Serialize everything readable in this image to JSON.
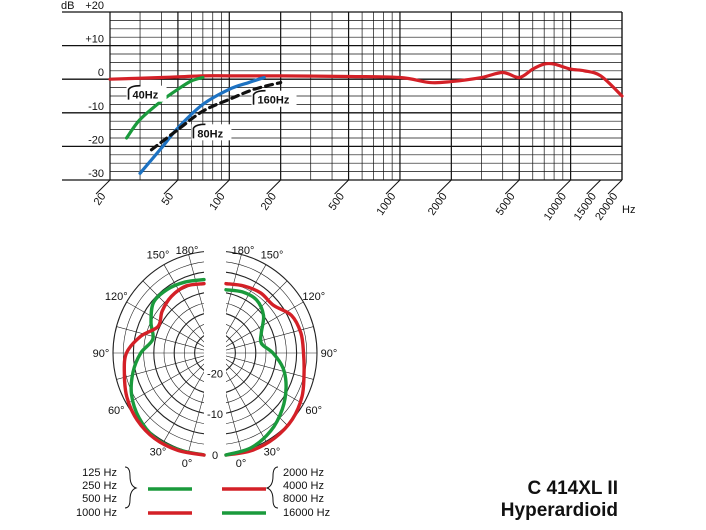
{
  "product": {
    "model": "C 414XL II",
    "pattern": "Hyperardioid"
  },
  "chart_data": [
    {
      "type": "line",
      "ylabel": "dB",
      "xlabel": "Hz",
      "xscale": "log",
      "xlim": [
        20,
        20000
      ],
      "ylim": [
        -30,
        20
      ],
      "x_ticks": [
        "20",
        "50",
        "100",
        "200",
        "500",
        "1000",
        "2000",
        "5000",
        "10000",
        "15000",
        "20000"
      ],
      "y_ticks": [
        "+20",
        "+10",
        "0",
        "-10",
        "-20",
        "-30"
      ],
      "series": [
        {
          "color": "#d42027",
          "x": [
            20,
            40,
            70,
            100,
            200,
            500,
            1000,
            1500,
            2000,
            3000,
            4000,
            5000,
            6000,
            7000,
            8000,
            10000,
            12000,
            15000,
            20000
          ],
          "y": [
            0,
            0.5,
            1,
            1,
            1,
            0.8,
            0.5,
            -1,
            -0.7,
            0.5,
            2,
            0.5,
            3,
            4.5,
            4.5,
            3,
            2.5,
            1,
            -5
          ]
        },
        {
          "color": "#1a9a3c",
          "x": [
            25,
            30,
            40,
            50,
            60,
            70
          ],
          "y": [
            -17.5,
            -12,
            -6.5,
            -3,
            -0.5,
            0.5
          ]
        },
        {
          "color": "#1d72c2",
          "x": [
            30,
            40,
            50,
            70,
            100,
            130,
            160
          ],
          "y": [
            -28,
            -20.5,
            -14.5,
            -7.5,
            -3,
            -1,
            0.5
          ]
        },
        {
          "color": "#111111",
          "dash": true,
          "x": [
            35,
            50,
            70,
            100,
            140,
            200
          ],
          "y": [
            -21,
            -15,
            -9.5,
            -6,
            -3,
            -1
          ]
        }
      ],
      "annotations": [
        "40Hz",
        "80Hz",
        "160Hz"
      ]
    },
    {
      "type": "polar",
      "angle_labels_left": [
        "180°",
        "150°",
        "120°",
        "90°",
        "60°",
        "30°",
        "0°"
      ],
      "angle_labels_right": [
        "180°",
        "150°",
        "120°",
        "90°",
        "60°",
        "30°",
        "0°"
      ],
      "radial_labels": [
        "-20",
        "-10",
        "0"
      ],
      "radial_range_db": [
        -25,
        0
      ],
      "legend": {
        "left": {
          "green": [
            "125 Hz",
            "250 Hz",
            "500 Hz"
          ],
          "red": [
            "1000 Hz"
          ]
        },
        "right": {
          "red": [
            "2000 Hz",
            "4000 Hz",
            "8000 Hz"
          ],
          "green": [
            "16000 Hz"
          ]
        }
      },
      "series": [
        {
          "name": "125 Hz",
          "color": "#1a9a3c",
          "side": "left",
          "angles": [
            0,
            15,
            30,
            45,
            60,
            75,
            90,
            105,
            120,
            135,
            150,
            165,
            180
          ],
          "db": [
            0,
            -0.5,
            -1,
            -2.5,
            -4.5,
            -7,
            -9.5,
            -12,
            -10,
            -7.5,
            -7,
            -7,
            -7
          ]
        },
        {
          "name": "1000 Hz",
          "color": "#d42027",
          "side": "left",
          "angles": [
            0,
            15,
            30,
            45,
            60,
            75,
            90,
            105,
            120,
            135,
            150,
            165,
            180
          ],
          "db": [
            0,
            -0.3,
            -0.8,
            -1.8,
            -3.2,
            -4.8,
            -6,
            -9,
            -12,
            -10.5,
            -9,
            -8,
            -8
          ]
        },
        {
          "name": "2000 Hz",
          "color": "#d42027",
          "side": "right",
          "angles": [
            0,
            15,
            30,
            45,
            60,
            75,
            90,
            105,
            120,
            135,
            150,
            165,
            180
          ],
          "db": [
            0,
            -0.3,
            -1,
            -2,
            -3.5,
            -5.2,
            -6,
            -6,
            -6.5,
            -8.5,
            -8,
            -8,
            -8
          ]
        },
        {
          "name": "16000 Hz",
          "color": "#1a9a3c",
          "side": "right",
          "angles": [
            0,
            15,
            30,
            45,
            60,
            75,
            90,
            105,
            120,
            135,
            150,
            165,
            180
          ],
          "db": [
            0,
            -1,
            -3,
            -5.5,
            -8,
            -10.5,
            -13.5,
            -16,
            -15,
            -12,
            -10,
            -9.5,
            -9.5
          ]
        }
      ]
    }
  ]
}
